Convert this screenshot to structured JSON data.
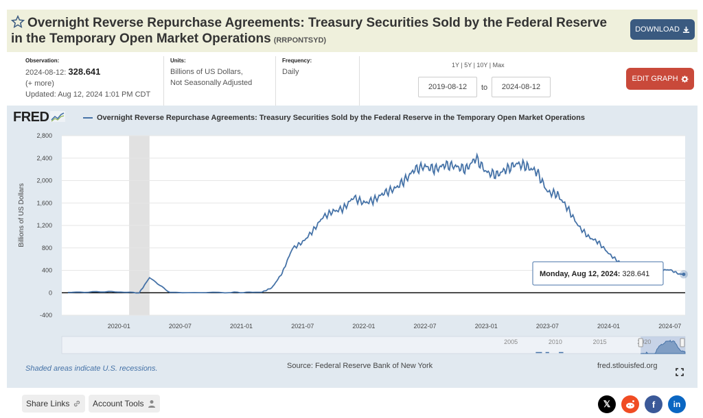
{
  "header": {
    "title": "Overnight Reverse Repurchase Agreements: Treasury Securities Sold by the Federal Reserve in the Temporary Open Market Operations",
    "series_id": "(RRPONTSYD)",
    "download_label": "DOWNLOAD"
  },
  "meta": {
    "observation_label": "Observation:",
    "observation_date": "2024-08-12:",
    "observation_value": "328.641",
    "more": "(+ more)",
    "updated": "Updated: Aug 12, 2024 1:01 PM CDT",
    "units_label": "Units:",
    "units_line1": "Billions of US Dollars,",
    "units_line2": "Not Seasonally Adjusted",
    "frequency_label": "Frequency:",
    "frequency": "Daily"
  },
  "range": {
    "options": [
      "1Y",
      "5Y",
      "10Y",
      "Max"
    ],
    "start": "2019-08-12",
    "to": "to",
    "end": "2024-08-12"
  },
  "edit_label": "EDIT GRAPH",
  "chart_data": {
    "type": "line",
    "title": "Overnight Reverse Repurchase Agreements: Treasury Securities Sold by the Federal Reserve in the Temporary Open Market Operations",
    "ylabel": "Billions of US Dollars",
    "xlabel": "",
    "ylim": [
      -400,
      2800
    ],
    "yticks": [
      "2,800",
      "2,400",
      "2,000",
      "1,600",
      "1,200",
      "800",
      "400",
      "0",
      "-400"
    ],
    "xticks": [
      "2020-01",
      "2020-07",
      "2021-01",
      "2021-07",
      "2022-01",
      "2022-07",
      "2023-01",
      "2023-07",
      "2024-01",
      "2024-07"
    ],
    "recession": [
      "2020-02",
      "2020-04"
    ],
    "series": [
      {
        "name": "",
        "color": "#4572a7",
        "x": [
          "2019-08",
          "2019-12",
          "2020-03",
          "2020-04",
          "2020-06",
          "2020-12",
          "2021-03",
          "2021-04",
          "2021-05",
          "2021-06",
          "2021-07",
          "2021-08",
          "2021-09",
          "2021-10",
          "2021-11",
          "2021-12",
          "2022-01",
          "2022-02",
          "2022-03",
          "2022-04",
          "2022-05",
          "2022-06",
          "2022-07",
          "2022-08",
          "2022-09",
          "2022-10",
          "2022-11",
          "2022-12",
          "2023-01",
          "2023-02",
          "2023-03",
          "2023-04",
          "2023-05",
          "2023-06",
          "2023-07",
          "2023-08",
          "2023-09",
          "2023-10",
          "2023-11",
          "2023-12",
          "2024-01",
          "2024-02",
          "2024-03",
          "2024-04",
          "2024-05",
          "2024-06",
          "2024-07",
          "2024-08"
        ],
        "values": [
          5,
          20,
          0,
          270,
          2,
          5,
          10,
          90,
          350,
          790,
          900,
          1100,
          1350,
          1450,
          1500,
          1700,
          1600,
          1650,
          1780,
          1850,
          2000,
          2200,
          2250,
          2200,
          2280,
          2250,
          2200,
          2400,
          2150,
          2100,
          2200,
          2300,
          2250,
          2150,
          1800,
          1750,
          1500,
          1200,
          1000,
          900,
          700,
          550,
          450,
          450,
          480,
          400,
          410,
          328.641
        ]
      }
    ],
    "tooltip": {
      "date": "Monday, Aug 12, 2024:",
      "value": "328.641"
    },
    "navigator_ticks": [
      "2005",
      "2010",
      "2015",
      "2020"
    ]
  },
  "footer": {
    "recession_note": "Shaded areas indicate U.S. recessions.",
    "source": "Source: Federal Reserve Bank of New York",
    "url": "fred.stlouisfed.org"
  },
  "bottom": {
    "share_links": "Share Links",
    "account_tools": "Account Tools"
  },
  "fred_logo": "FRED",
  "colors": {
    "series": "#4572a7",
    "download": "#3a5a80",
    "edit": "#c9493a"
  }
}
